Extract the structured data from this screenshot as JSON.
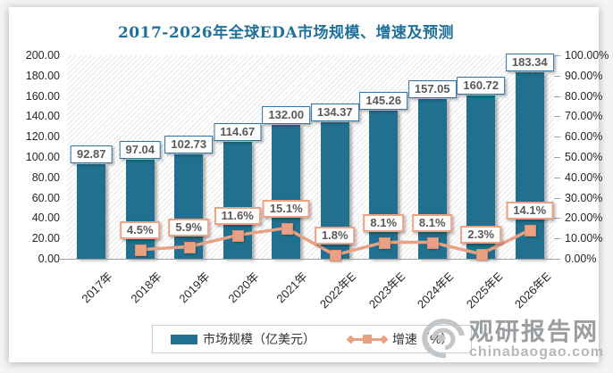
{
  "title": "2017-2026年全球EDA市场规模、增速及预测",
  "chart_data": {
    "type": "bar",
    "combo": "bar+line",
    "title": "2017-2026年全球EDA市场规模、增速及预测",
    "categories": [
      "2017年",
      "2018年",
      "2019年",
      "2020年",
      "2021年",
      "2022年E",
      "2023年E",
      "2024年E",
      "2025年E",
      "2026年E"
    ],
    "series": [
      {
        "name": "市场规模（亿美元）",
        "type": "bar",
        "axis": "left",
        "values": [
          92.87,
          97.04,
          102.73,
          114.67,
          132.0,
          134.37,
          145.26,
          157.05,
          160.72,
          183.34
        ],
        "labels": [
          "92.87",
          "97.04",
          "102.73",
          "114.67",
          "132.00",
          "134.37",
          "145.26",
          "157.05",
          "160.72",
          "183.34"
        ]
      },
      {
        "name": "增速（%）",
        "type": "line",
        "axis": "right",
        "values": [
          null,
          4.5,
          5.9,
          11.6,
          15.1,
          1.8,
          8.1,
          8.1,
          2.3,
          14.1
        ],
        "labels": [
          null,
          "4.5%",
          "5.9%",
          "11.6%",
          "15.1%",
          "1.8%",
          "8.1%",
          "8.1%",
          "2.3%",
          "14.1%"
        ]
      }
    ],
    "left_axis": {
      "min": 0,
      "max": 200,
      "step": 20,
      "ticks": [
        "200.00",
        "180.00",
        "160.00",
        "140.00",
        "120.00",
        "100.00",
        "80.00",
        "60.00",
        "40.00",
        "20.00",
        "0.00"
      ]
    },
    "right_axis": {
      "min": 0,
      "max": 100,
      "step": 10,
      "ticks": [
        "100.00%",
        "90.00%",
        "80.00%",
        "70.00%",
        "60.00%",
        "50.00%",
        "40.00%",
        "30.00%",
        "20.00%",
        "10.00%",
        "0.00%"
      ]
    },
    "grid": false,
    "legend_position": "bottom",
    "plot_background": "diagonal-hatch"
  },
  "legend": {
    "items": [
      {
        "label": "市场规模（亿美元）",
        "swatch": "bar"
      },
      {
        "label": "增速（%）",
        "swatch": "line-with-square-marker"
      }
    ]
  },
  "watermark": {
    "brand": "观研报告网",
    "domain": "chinabaogao.com",
    "logo_icon": "swirl-eye-logo"
  },
  "colors": {
    "bar": "#21708F",
    "line": "#E9A183",
    "title_text": "#20719A",
    "bar_label_border": "#2E74A6",
    "line_label_border": "#EBA285",
    "label_text": "#595959",
    "axis_text": "#262626",
    "axis_line": "#9E9E9E",
    "watermark_gray": "#9A9EA1"
  }
}
